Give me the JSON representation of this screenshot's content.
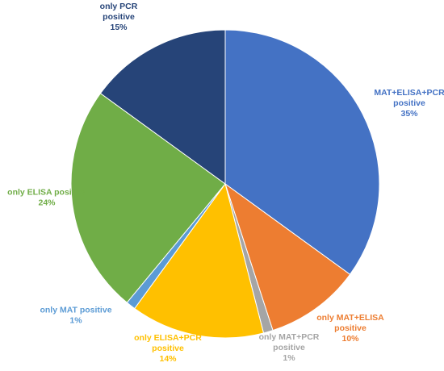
{
  "chart_data": {
    "type": "pie",
    "slices": [
      {
        "label_lines": [
          "MAT+ELISA+PCR",
          "positive",
          "35%"
        ],
        "value": 35,
        "color": "#4472C4"
      },
      {
        "label_lines": [
          "only MAT+ELISA",
          "positive",
          "10%"
        ],
        "value": 10,
        "color": "#ED7D31"
      },
      {
        "label_lines": [
          "only MAT+PCR",
          "positive",
          "1%"
        ],
        "value": 1,
        "color": "#A5A5A5"
      },
      {
        "label_lines": [
          "only ELISA+PCR",
          "positive",
          "14%"
        ],
        "value": 14,
        "color": "#FFC000"
      },
      {
        "label_lines": [
          "only MAT positive",
          "1%"
        ],
        "value": 1,
        "color": "#5B9BD5"
      },
      {
        "label_lines": [
          "only ELISA positive",
          "24%"
        ],
        "value": 24,
        "color": "#70AD47"
      },
      {
        "label_lines": [
          "only PCR",
          "positive",
          "15%"
        ],
        "value": 15,
        "color": "#264478"
      }
    ],
    "start_angle": "12 o'clock",
    "direction": "clockwise"
  }
}
